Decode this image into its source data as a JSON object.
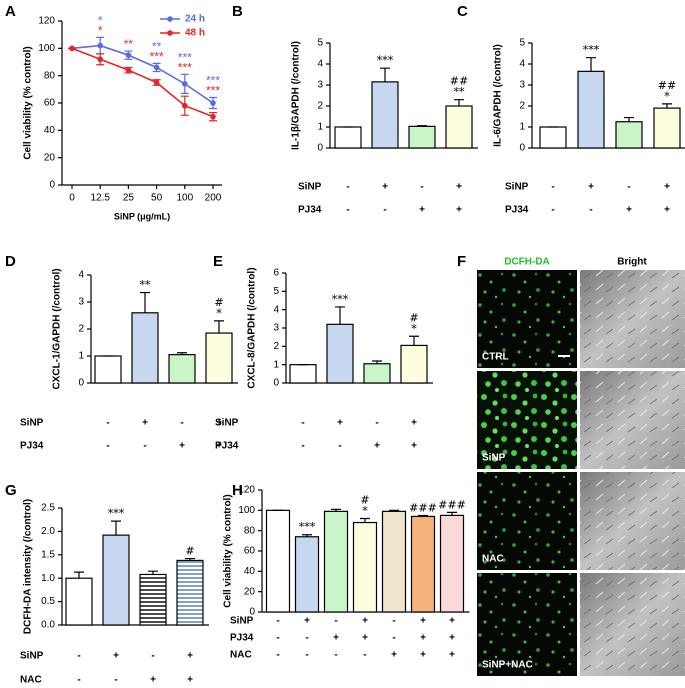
{
  "chart_data": [
    {
      "label": "A",
      "type": "line",
      "categories": [
        "0",
        "12.5",
        "25",
        "50",
        "100",
        "200"
      ],
      "x_label": "SiNP (μg/mL)",
      "y_label": "Cell viability (% control)",
      "ylim": [
        0,
        120
      ],
      "yticks": [
        0,
        20,
        40,
        60,
        80,
        100,
        120
      ],
      "series": [
        {
          "name": "24 h",
          "color": "#5a6bea",
          "values": [
            100,
            102,
            95,
            86,
            74,
            60
          ],
          "errors": [
            0,
            6,
            3,
            3,
            7,
            4
          ],
          "sig_labels": [
            null,
            "*",
            null,
            "**",
            "***",
            "***"
          ]
        },
        {
          "name": "48 h",
          "color": "#e8242a",
          "values": [
            100,
            92,
            84,
            75,
            58,
            50
          ],
          "errors": [
            0,
            4,
            2,
            2,
            7,
            3
          ],
          "sig_labels": [
            null,
            "*",
            "**",
            "***",
            "***",
            "***"
          ]
        }
      ]
    },
    {
      "label": "B",
      "type": "bar",
      "y_label": "IL-1β/GAPDH (/control)",
      "ylim": [
        0,
        5
      ],
      "yticks": [
        0,
        1,
        2,
        3,
        4,
        5
      ],
      "values": [
        1,
        3.15,
        1.03,
        2.0
      ],
      "errors": [
        0,
        0.65,
        0.03,
        0.3
      ],
      "colors": [
        "#ffffff",
        "#c6d9f1",
        "#c9f5c9",
        "#fffde0"
      ],
      "sig_labels": [
        null,
        [
          "***"
        ],
        null,
        [
          "##",
          "**"
        ]
      ],
      "conditions": [
        {
          "name": "SiNP",
          "values": [
            "-",
            "+",
            "-",
            "+"
          ]
        },
        {
          "name": "PJ34",
          "values": [
            "-",
            "-",
            "+",
            "+"
          ]
        }
      ]
    },
    {
      "label": "C",
      "type": "bar",
      "y_label": "IL-6/GAPDH (/control)",
      "ylim": [
        0,
        5
      ],
      "yticks": [
        0,
        1,
        2,
        3,
        4,
        5
      ],
      "values": [
        1,
        3.65,
        1.25,
        1.9
      ],
      "errors": [
        0,
        0.65,
        0.2,
        0.2
      ],
      "colors": [
        "#ffffff",
        "#c6d9f1",
        "#c9f5c9",
        "#fffde0"
      ],
      "sig_labels": [
        null,
        [
          "***"
        ],
        null,
        [
          "##",
          "*"
        ]
      ],
      "conditions": [
        {
          "name": "SiNP",
          "values": [
            "-",
            "+",
            "-",
            "+"
          ]
        },
        {
          "name": "PJ34",
          "values": [
            "-",
            "-",
            "+",
            "+"
          ]
        }
      ]
    },
    {
      "label": "D",
      "type": "bar",
      "y_label": "CXCL-1/GAPDH (/control)",
      "ylim": [
        0,
        4
      ],
      "yticks": [
        0,
        1,
        2,
        3,
        4
      ],
      "values": [
        1,
        2.6,
        1.05,
        1.85
      ],
      "errors": [
        0,
        0.75,
        0.07,
        0.45
      ],
      "colors": [
        "#ffffff",
        "#c6d9f1",
        "#c9f5c9",
        "#fffde0"
      ],
      "sig_labels": [
        null,
        [
          "**"
        ],
        null,
        [
          "#",
          "*"
        ]
      ],
      "conditions": [
        {
          "name": "SiNP",
          "values": [
            "-",
            "+",
            "-",
            "+"
          ]
        },
        {
          "name": "PJ34",
          "values": [
            "-",
            "-",
            "+",
            "+"
          ]
        }
      ]
    },
    {
      "label": "E",
      "type": "bar",
      "y_label": "CXCL-8/GAPDH (/control)",
      "ylim": [
        0,
        6
      ],
      "yticks": [
        0,
        1,
        2,
        3,
        4,
        5,
        6
      ],
      "values": [
        1,
        3.2,
        1.05,
        2.05
      ],
      "errors": [
        0,
        0.95,
        0.15,
        0.5
      ],
      "colors": [
        "#ffffff",
        "#c6d9f1",
        "#c9f5c9",
        "#fffde0"
      ],
      "sig_labels": [
        null,
        [
          "***"
        ],
        null,
        [
          "#",
          "*"
        ]
      ],
      "conditions": [
        {
          "name": "SiNP",
          "values": [
            "-",
            "+",
            "-",
            "+"
          ]
        },
        {
          "name": "PJ34",
          "values": [
            "-",
            "-",
            "+",
            "+"
          ]
        }
      ]
    },
    {
      "label": "F",
      "type": "image-grid",
      "columns": [
        "DCFH-DA",
        "Bright"
      ],
      "rows": [
        "CTRL",
        "SiNP",
        "NAC",
        "SiNP+NAC"
      ]
    },
    {
      "label": "G",
      "type": "bar",
      "y_label": "DCFH-DA intensity (/control)",
      "ylim": [
        0,
        2.5
      ],
      "yticks": [
        {
          "value": 0,
          "label": "0.0"
        },
        0.5,
        {
          "value": 1,
          "label": "1.0"
        },
        1.5,
        {
          "value": 2,
          "label": "2.0"
        },
        2.5
      ],
      "values": [
        1.0,
        1.92,
        1.08,
        1.38
      ],
      "errors": [
        0.13,
        0.3,
        0.07,
        0.04
      ],
      "colors": [
        "#ffffff",
        "#c6d9f1",
        "#000000",
        "#4f74c2"
      ],
      "hatch": [
        false,
        false,
        true,
        true
      ],
      "sig_labels": [
        null,
        [
          "***"
        ],
        null,
        [
          "#"
        ]
      ],
      "conditions": [
        {
          "name": "SiNP",
          "values": [
            "-",
            "+",
            "-",
            "+"
          ]
        },
        {
          "name": "NAC",
          "values": [
            "-",
            "-",
            "+",
            "+"
          ]
        }
      ]
    },
    {
      "label": "H",
      "type": "bar",
      "y_label": "Cell viability (% control)",
      "ylim": [
        0,
        120
      ],
      "yticks": [
        0,
        20,
        40,
        60,
        80,
        100,
        120
      ],
      "values": [
        100,
        74,
        99,
        88,
        99,
        94,
        95
      ],
      "errors": [
        0,
        2,
        2,
        4,
        1,
        1,
        3
      ],
      "colors": [
        "#ffffff",
        "#c6d9f1",
        "#c9f5c9",
        "#fffde0",
        "#ede6cc",
        "#f5b27a",
        "#fcd9d9"
      ],
      "sig_labels": [
        null,
        [
          "***"
        ],
        null,
        [
          "#",
          "*"
        ],
        null,
        [
          "###"
        ],
        [
          "###"
        ]
      ],
      "conditions": [
        {
          "name": "SiNP",
          "values": [
            "-",
            "+",
            "-",
            "+",
            "-",
            "+",
            "+"
          ]
        },
        {
          "name": "PJ34",
          "values": [
            "-",
            "-",
            "+",
            "+",
            "-",
            "+",
            "+"
          ]
        },
        {
          "name": "NAC",
          "values": [
            "-",
            "-",
            "-",
            "-",
            "+",
            "+",
            "+"
          ]
        }
      ]
    }
  ]
}
